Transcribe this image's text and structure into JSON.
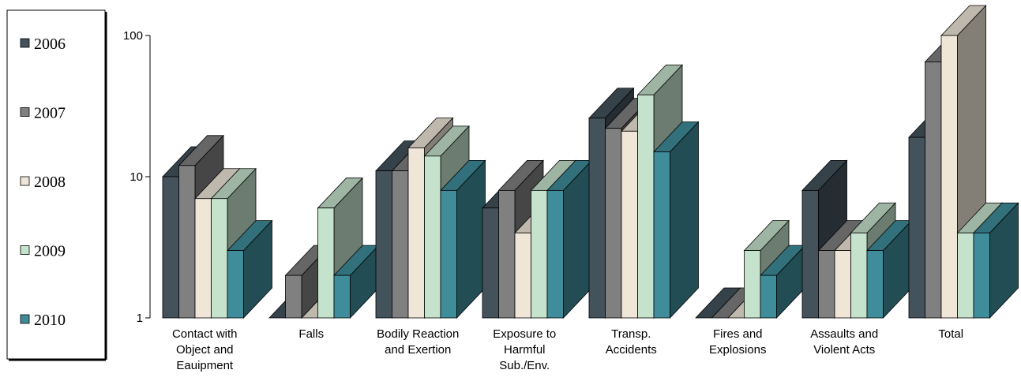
{
  "chart_data": {
    "type": "bar",
    "yscale": "log",
    "ylim": [
      1,
      100
    ],
    "yticks": [
      "1",
      "10",
      "100"
    ],
    "categories": [
      [
        "Contact with",
        "Object and",
        "Eauipment"
      ],
      [
        "Falls"
      ],
      [
        "Bodily Reaction",
        "and Exertion"
      ],
      [
        "Exposure to",
        "Harmful",
        "Sub./Env."
      ],
      [
        "Transp.",
        "Accidents"
      ],
      [
        "Fires and",
        "Explosions"
      ],
      [
        "Assaults and",
        "Violent Acts"
      ],
      [
        "Total"
      ]
    ],
    "series": [
      {
        "name": "2006",
        "color": "#44525c",
        "values": [
          10,
          1,
          11,
          6,
          26,
          1,
          8,
          19
        ]
      },
      {
        "name": "2007",
        "color": "#808080",
        "values": [
          12,
          2,
          11,
          8,
          22,
          1,
          3,
          65
        ]
      },
      {
        "name": "2008",
        "color": "#efe6d8",
        "values": [
          7,
          1,
          16,
          4,
          21,
          1,
          3,
          100
        ]
      },
      {
        "name": "2009",
        "color": "#c5e2cc",
        "values": [
          7,
          6,
          14,
          8,
          38,
          3,
          4,
          4
        ]
      },
      {
        "name": "2010",
        "color": "#3f8c9a",
        "values": [
          3,
          2,
          8,
          8,
          15,
          2,
          3,
          4
        ]
      }
    ],
    "legend": "left",
    "grid": false
  }
}
